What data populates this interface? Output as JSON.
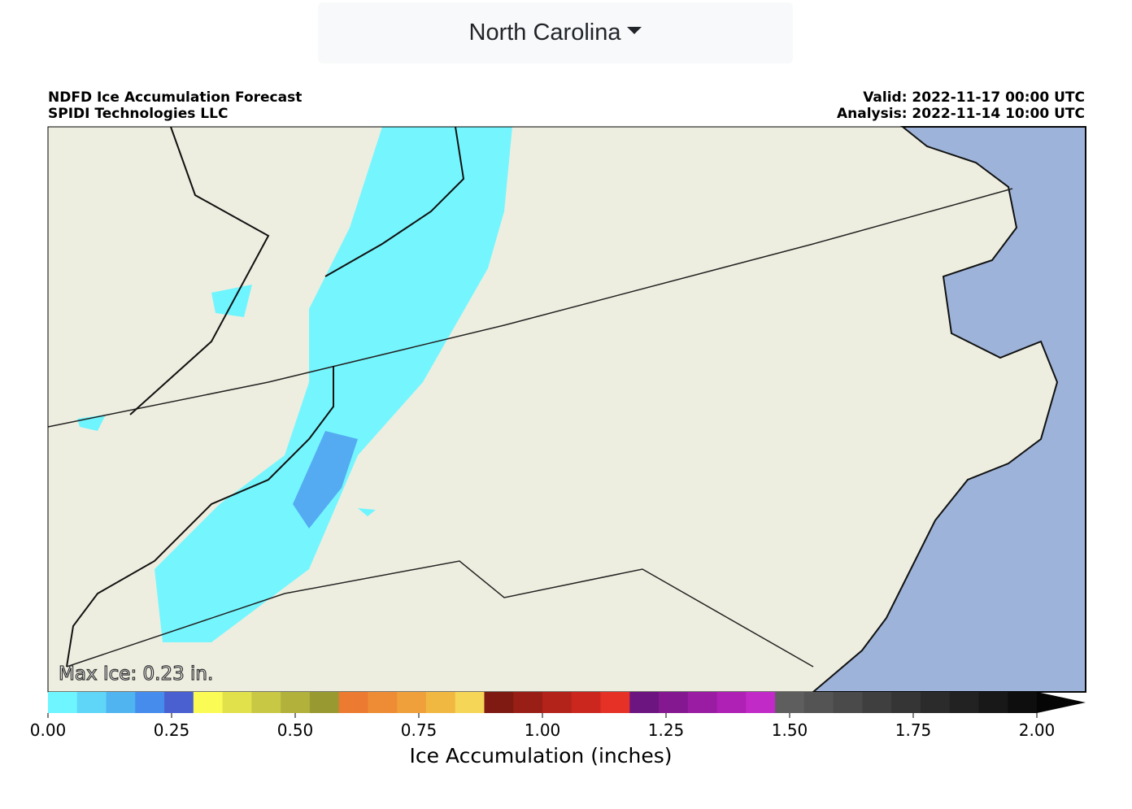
{
  "dropdown": {
    "label": "North Carolina"
  },
  "map": {
    "title": "NDFD Ice Accumulation Forecast",
    "subtitle": "SPIDI Technologies LLC",
    "valid": "Valid: 2022-11-17 00:00 UTC",
    "analysis": "Analysis: 2022-11-14 10:00 UTC",
    "annotation": "Max Ice: 0.23 in."
  },
  "colorbar": {
    "label": "Ice Accumulation (inches)",
    "lim": [
      0,
      2
    ],
    "ticks": [
      {
        "value": 0,
        "label": "0.00"
      },
      {
        "value": 0.25,
        "label": "0.25"
      },
      {
        "value": 0.5,
        "label": "0.50"
      },
      {
        "value": 0.75,
        "label": "0.75"
      },
      {
        "value": 1,
        "label": "1.00"
      },
      {
        "value": 1.25,
        "label": "1.25"
      },
      {
        "value": 1.5,
        "label": "1.50"
      },
      {
        "value": 1.75,
        "label": "1.75"
      },
      {
        "value": 2,
        "label": "2.00"
      }
    ],
    "colors": [
      "#6ef5ff",
      "#5fd6f7",
      "#50b4f0",
      "#468ced",
      "#4a5fd0",
      "#fbfb55",
      "#e1e14c",
      "#c8c845",
      "#b1b13c",
      "#999931",
      "#ec7a30",
      "#ee8c35",
      "#efa03a",
      "#f1b841",
      "#f5d657",
      "#7e1a12",
      "#991f16",
      "#b3231a",
      "#cb271e",
      "#e53126",
      "#6c1480",
      "#841890",
      "#9a1ca2",
      "#ae21b4",
      "#c22ac8",
      "#5e5e5e",
      "#545454",
      "#4a4a4a",
      "#3f3f3f",
      "#353535",
      "#2b2b2b",
      "#222222",
      "#181818",
      "#0e0e0e",
      "#050505"
    ]
  }
}
